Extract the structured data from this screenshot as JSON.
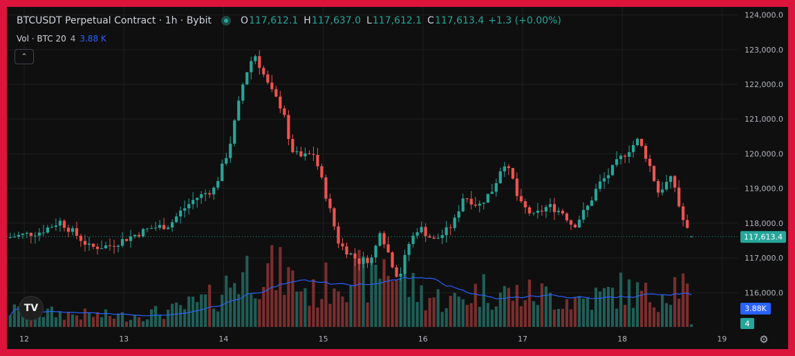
{
  "header": {
    "symbol": "BTCUSDT Perpetual Contract · 1h · Bybit",
    "ohlc": {
      "o_label": "O",
      "o_value": "117,612.1",
      "h_label": "H",
      "h_value": "117,637.0",
      "l_label": "L",
      "l_value": "117,612.1",
      "c_label": "C",
      "c_value": "117,613.4",
      "change": "+1.3 (+0.00%)"
    }
  },
  "volume_legend": {
    "label": "Vol · BTC 20",
    "value_current": "4",
    "value_ma": "3.88 K"
  },
  "collapse_icon": "chevron-up-icon",
  "logo_text": "TV",
  "settings_icon": "gear-icon",
  "colors": {
    "up": "#26a69a",
    "down": "#ef5350",
    "up_volume": "#1f5e57",
    "down_volume": "#7a2e2e",
    "ma_line": "#2962ff",
    "grid": "#1f1f1f",
    "frame": "#dc143c"
  },
  "chart_data": {
    "type": "candlestick",
    "xlabel": "",
    "ylabel": "",
    "x_ticks": [
      "12",
      "13",
      "14",
      "15",
      "16",
      "17",
      "18",
      "19"
    ],
    "y_ticks": [
      "124,000.0",
      "123,000.0",
      "122,000.0",
      "121,000.0",
      "120,000.0",
      "119,000.0",
      "118,000.0",
      "117,000.0",
      "116,000.0"
    ],
    "ylim": [
      115000,
      124200
    ],
    "current_price_label": "117,613.4",
    "current_price": 117613.4,
    "volume_ma_label": "3.88K",
    "volume_current_label": "4",
    "grid": true,
    "price_anchors_by_day": [
      [
        11.86,
        117580
      ],
      [
        12.2,
        117750
      ],
      [
        12.4,
        118050
      ],
      [
        12.55,
        117700
      ],
      [
        12.7,
        117300
      ],
      [
        12.9,
        117350
      ],
      [
        13.1,
        117600
      ],
      [
        13.3,
        117850
      ],
      [
        13.5,
        117950
      ],
      [
        13.6,
        118300
      ],
      [
        13.75,
        118700
      ],
      [
        13.95,
        119000
      ],
      [
        14.1,
        120200
      ],
      [
        14.25,
        122200
      ],
      [
        14.35,
        122900
      ],
      [
        14.5,
        121900
      ],
      [
        14.65,
        121200
      ],
      [
        14.7,
        120200
      ],
      [
        14.8,
        119900
      ],
      [
        14.95,
        120000
      ],
      [
        15.05,
        119000
      ],
      [
        15.2,
        117400
      ],
      [
        15.4,
        116900
      ],
      [
        15.55,
        117000
      ],
      [
        15.6,
        117900
      ],
      [
        15.75,
        116700
      ],
      [
        15.8,
        116400
      ],
      [
        15.9,
        117400
      ],
      [
        16.0,
        117900
      ],
      [
        16.15,
        117500
      ],
      [
        16.25,
        117700
      ],
      [
        16.35,
        118000
      ],
      [
        16.45,
        118800
      ],
      [
        16.6,
        118500
      ],
      [
        16.75,
        119000
      ],
      [
        16.85,
        119800
      ],
      [
        16.95,
        119200
      ],
      [
        17.0,
        118600
      ],
      [
        17.15,
        118200
      ],
      [
        17.3,
        118500
      ],
      [
        17.45,
        118300
      ],
      [
        17.55,
        117900
      ],
      [
        17.7,
        118500
      ],
      [
        17.8,
        119100
      ],
      [
        17.9,
        119400
      ],
      [
        18.0,
        119800
      ],
      [
        18.1,
        120100
      ],
      [
        18.2,
        120400
      ],
      [
        18.3,
        119800
      ],
      [
        18.4,
        118900
      ],
      [
        18.5,
        119200
      ],
      [
        18.55,
        119300
      ],
      [
        18.6,
        118600
      ],
      [
        18.65,
        118100
      ],
      [
        18.72,
        117613
      ]
    ],
    "volume_anchors_by_day": [
      [
        11.86,
        0.9
      ],
      [
        12.5,
        0.7
      ],
      [
        13.0,
        0.6
      ],
      [
        13.5,
        0.9
      ],
      [
        13.9,
        1.6
      ],
      [
        14.15,
        2.9
      ],
      [
        14.3,
        3.3
      ],
      [
        14.6,
        2.9
      ],
      [
        14.9,
        1.8
      ],
      [
        15.2,
        3.1
      ],
      [
        15.5,
        2.5
      ],
      [
        15.6,
        3.7
      ],
      [
        15.8,
        2.5
      ],
      [
        16.0,
        1.8
      ],
      [
        16.3,
        1.4
      ],
      [
        16.6,
        2.1
      ],
      [
        16.9,
        1.8
      ],
      [
        17.2,
        1.8
      ],
      [
        17.5,
        1.5
      ],
      [
        17.8,
        1.7
      ],
      [
        18.0,
        2.1
      ],
      [
        18.3,
        1.6
      ],
      [
        18.5,
        2.4
      ],
      [
        18.6,
        2.4
      ],
      [
        18.72,
        1.3
      ]
    ]
  }
}
